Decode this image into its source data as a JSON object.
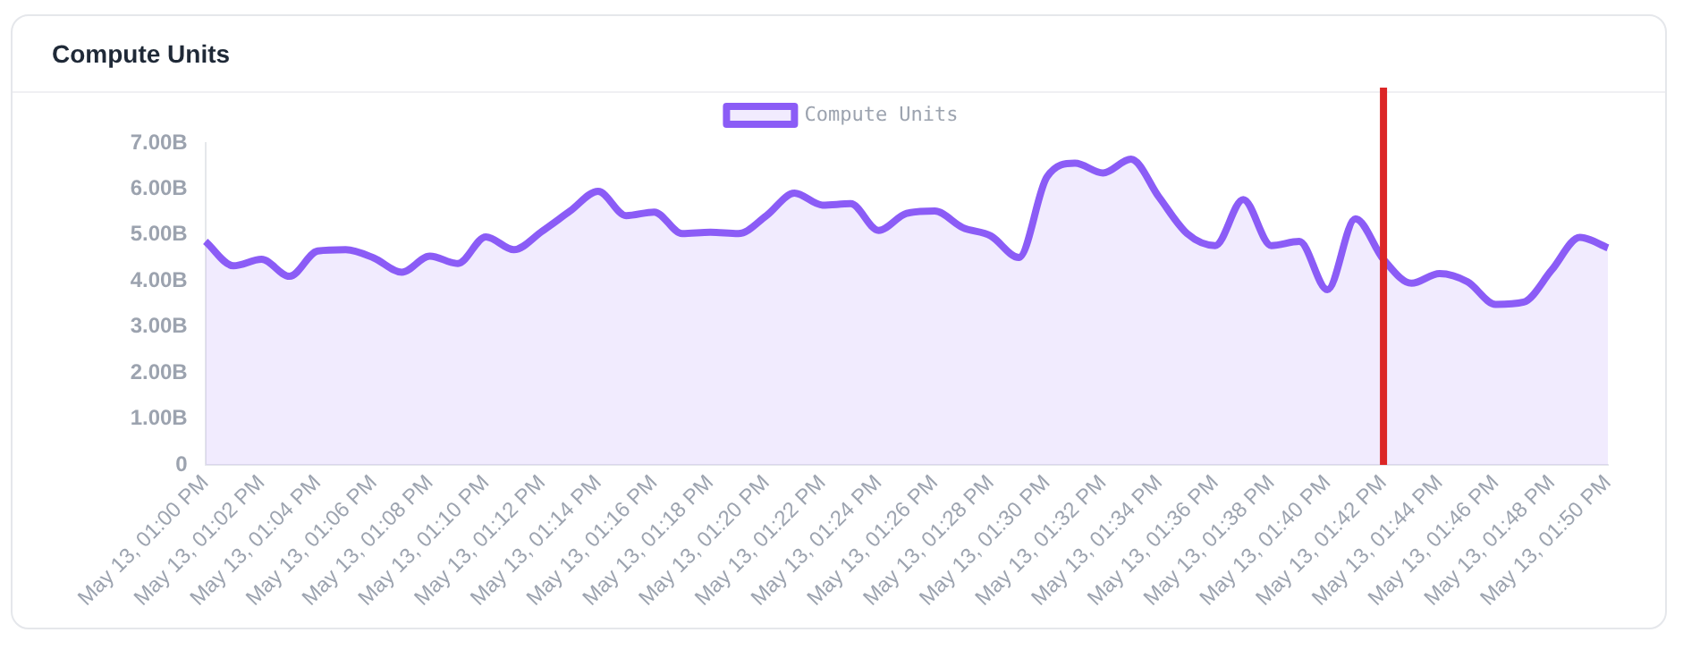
{
  "chart_data": {
    "type": "area",
    "title": "Compute Units",
    "categories": [
      "May 13, 01:00 PM",
      null,
      "May 13, 01:02 PM",
      null,
      "May 13, 01:04 PM",
      null,
      "May 13, 01:06 PM",
      null,
      "May 13, 01:08 PM",
      null,
      "May 13, 01:10 PM",
      null,
      "May 13, 01:12 PM",
      null,
      "May 13, 01:14 PM",
      null,
      "May 13, 01:16 PM",
      null,
      "May 13, 01:18 PM",
      null,
      "May 13, 01:20 PM",
      null,
      "May 13, 01:22 PM",
      null,
      "May 13, 01:24 PM",
      null,
      "May 13, 01:26 PM",
      null,
      "May 13, 01:28 PM",
      null,
      "May 13, 01:30 PM",
      null,
      "May 13, 01:32 PM",
      null,
      "May 13, 01:34 PM",
      null,
      "May 13, 01:36 PM",
      null,
      "May 13, 01:38 PM",
      null,
      "May 13, 01:40 PM",
      null,
      "May 13, 01:42 PM",
      null,
      "May 13, 01:44 PM",
      null,
      "May 13, 01:46 PM",
      null,
      "May 13, 01:48 PM",
      null,
      "May 13, 01:50 PM"
    ],
    "series": [
      {
        "name": "Compute Units",
        "color": "#8b5cf6",
        "values": [
          4.86,
          4.33,
          4.47,
          4.1,
          4.65,
          4.68,
          4.5,
          4.19,
          4.54,
          4.38,
          4.96,
          4.68,
          5.08,
          5.52,
          5.95,
          5.42,
          5.5,
          5.03,
          5.06,
          5.03,
          5.42,
          5.91,
          5.65,
          5.68,
          5.1,
          5.47,
          5.52,
          5.16,
          4.98,
          4.51,
          6.26,
          6.56,
          6.35,
          6.65,
          5.82,
          5.03,
          4.77,
          5.77,
          4.77,
          4.86,
          3.81,
          5.35,
          4.47,
          3.95,
          4.16,
          3.98,
          3.49,
          3.54,
          4.24,
          4.95,
          4.72
        ]
      }
    ],
    "ylim": [
      0,
      7
    ],
    "yticks": [
      {
        "value": 0,
        "label": "0"
      },
      {
        "value": 1,
        "label": "1.00B"
      },
      {
        "value": 2,
        "label": "2.00B"
      },
      {
        "value": 3,
        "label": "3.00B"
      },
      {
        "value": 4,
        "label": "4.00B"
      },
      {
        "value": 5,
        "label": "5.00B"
      },
      {
        "value": 6,
        "label": "6.00B"
      },
      {
        "value": 7,
        "label": "7.00B"
      }
    ],
    "ref_lines": [
      {
        "axis": "x",
        "value": "May 13, 01:42 PM",
        "color": "#dc2626"
      }
    ],
    "legend": "top",
    "grid": false
  }
}
